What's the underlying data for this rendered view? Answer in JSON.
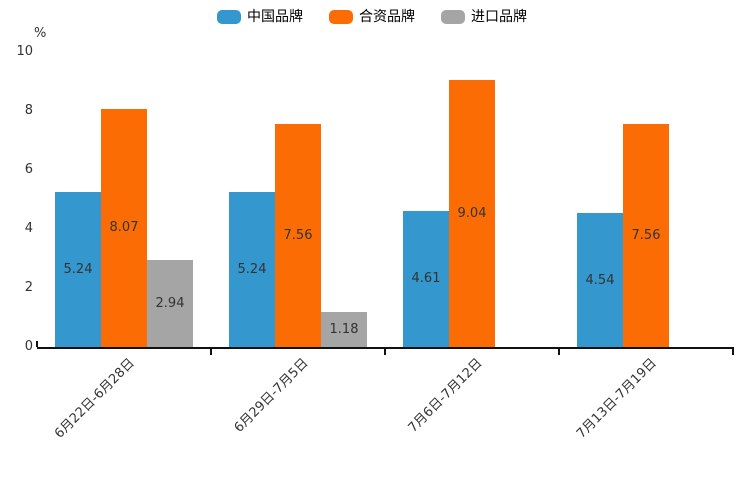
{
  "chart_data": {
    "type": "bar",
    "title": "",
    "ylabel": "%",
    "ylim": [
      0,
      10
    ],
    "yticks": [
      0,
      2,
      4,
      6,
      8,
      10
    ],
    "grid": false,
    "legend_position": "top",
    "categories": [
      "6月22日-6月28日",
      "6月29日-7月5日",
      "7月6日-7月12日",
      "7月13日-7月19日"
    ],
    "series": [
      {
        "name": "中国品牌",
        "color": "#3497CD",
        "values": [
          5.24,
          5.24,
          4.61,
          4.54
        ]
      },
      {
        "name": "合资品牌",
        "color": "#FB6D04",
        "values": [
          8.07,
          7.56,
          9.04,
          7.56
        ]
      },
      {
        "name": "进口品牌",
        "color": "#A5A5A5",
        "values": [
          2.94,
          1.18,
          null,
          null
        ]
      }
    ],
    "value_labels": [
      "5.24",
      "8.07",
      "2.94",
      "5.24",
      "7.56",
      "1.18",
      "4.61",
      "9.04",
      "4.54",
      "7.56"
    ],
    "bar_label_color": "#333333",
    "axis_color": "#111111"
  }
}
